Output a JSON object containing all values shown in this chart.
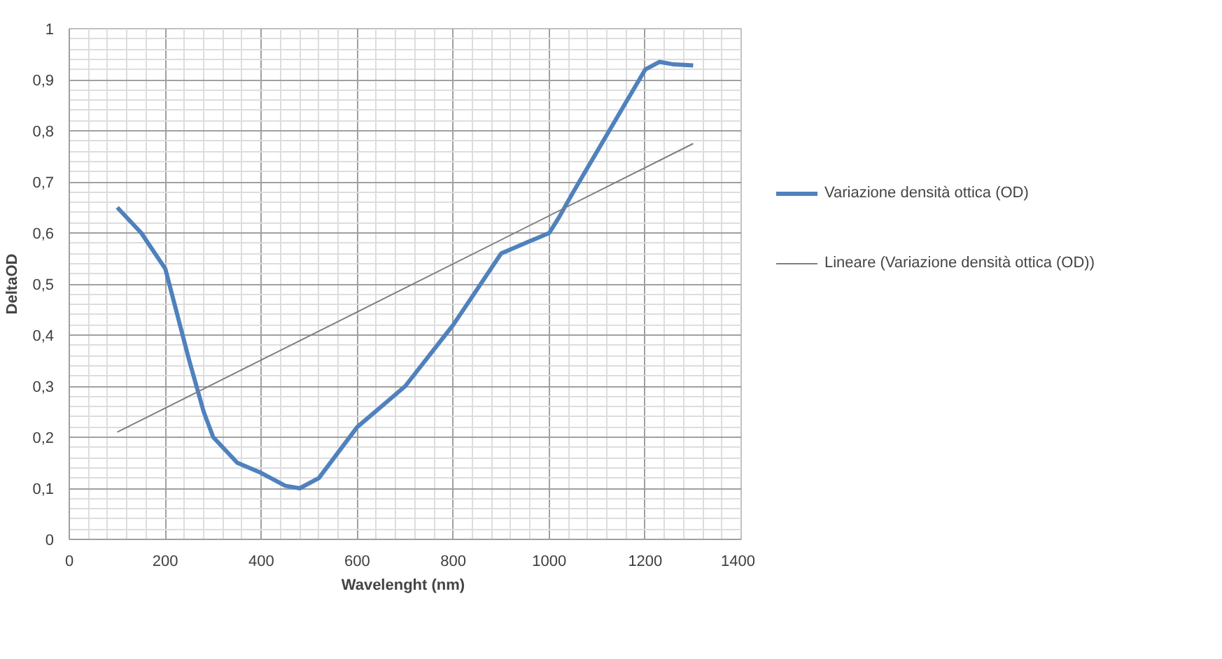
{
  "chart_data": {
    "type": "line",
    "xlabel": "Wavelenght  (nm)",
    "ylabel": "DeltaOD",
    "series": [
      {
        "name": "Variazione densità ottica (OD)",
        "color": "#4f81bd",
        "x": [
          100,
          150,
          200,
          250,
          280,
          300,
          350,
          400,
          450,
          480,
          520,
          560,
          600,
          650,
          700,
          750,
          800,
          850,
          900,
          950,
          1000,
          1020,
          1050,
          1100,
          1150,
          1200,
          1230,
          1260,
          1300
        ],
        "values": [
          0.65,
          0.6,
          0.53,
          0.35,
          0.25,
          0.2,
          0.15,
          0.13,
          0.105,
          0.1,
          0.12,
          0.17,
          0.22,
          0.26,
          0.3,
          0.36,
          0.42,
          0.49,
          0.56,
          0.58,
          0.6,
          0.63,
          0.68,
          0.76,
          0.84,
          0.92,
          0.935,
          0.93,
          0.928
        ]
      },
      {
        "name": "Lineare (Variazione densità ottica (OD))",
        "color": "#7f7f7f",
        "x": [
          100,
          1300
        ],
        "values": [
          0.21,
          0.775
        ]
      }
    ],
    "xlim": [
      0,
      1400
    ],
    "xticks": [
      0,
      200,
      400,
      600,
      800,
      1000,
      1200,
      1400
    ],
    "ylim": [
      0,
      1
    ],
    "yticks": [
      0,
      {
        "value": 0.1,
        "label": "0,1"
      },
      {
        "value": 0.2,
        "label": "0,2"
      },
      {
        "value": 0.3,
        "label": "0,3"
      },
      {
        "value": 0.4,
        "label": "0,4"
      },
      {
        "value": 0.5,
        "label": "0,5"
      },
      {
        "value": 0.6,
        "label": "0,6"
      },
      {
        "value": 0.7,
        "label": "0,7"
      },
      {
        "value": 0.8,
        "label": "0,8"
      },
      {
        "value": 0.9,
        "label": "0,9"
      },
      1
    ],
    "grid": true,
    "legend": "right"
  }
}
